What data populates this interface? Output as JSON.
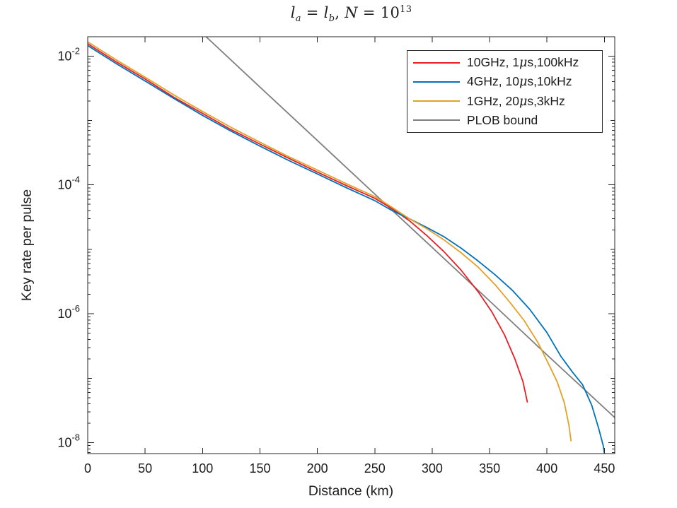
{
  "figure": {
    "background": "#ffffff",
    "axis_color": "#262626",
    "text_color": "#1c1c1c",
    "title_text": "l_a = l_b, N = 10^13",
    "title_parts": {
      "v1": "l",
      "s1": "a",
      "eq1": " = ",
      "v2": "l",
      "s2": "b",
      "comma": ", ",
      "n": "N",
      "eq2": " = 10",
      "sup": "13"
    }
  },
  "chart_data": {
    "type": "line",
    "title": "l_a = l_b, N = 10^13",
    "xlabel": "Distance (km)",
    "ylabel": "Key rate per pulse",
    "x_scale": "linear",
    "y_scale": "log",
    "xlim": [
      0,
      459
    ],
    "ylim": [
      6.8e-09,
      0.02
    ],
    "ylim_exponents": [
      -8.17,
      -1.7
    ],
    "x_ticks": [
      0,
      50,
      100,
      150,
      200,
      250,
      300,
      350,
      400,
      450
    ],
    "y_tick_exponents": [
      -2,
      -4,
      -6,
      -8
    ],
    "grid": false,
    "legend_position": "top-right",
    "series": [
      {
        "key": "10ghz",
        "name": "10GHz, 1μs,100kHz",
        "color": "#e81e25",
        "x": [
          0,
          25,
          50,
          75,
          100,
          125,
          150,
          175,
          200,
          225,
          250,
          265,
          280,
          295,
          310,
          325,
          340,
          352,
          363,
          372,
          379,
          383
        ],
        "y": [
          0.0155,
          0.0081,
          0.0044,
          0.0023,
          0.00129,
          0.00072,
          0.00043,
          0.00026,
          0.000158,
          9.8e-05,
          6.2e-05,
          4.3e-05,
          2.8e-05,
          1.66e-05,
          9.3e-06,
          4.8e-06,
          2.2e-06,
          1.07e-06,
          4.7e-07,
          2e-07,
          8.9e-08,
          4.2e-08
        ]
      },
      {
        "key": "4ghz",
        "name": "4GHz, 10μs,10kHz",
        "color": "#0072bd",
        "x": [
          0,
          25,
          50,
          75,
          100,
          125,
          150,
          175,
          200,
          225,
          250,
          265,
          280,
          295,
          310,
          325,
          340,
          355,
          370,
          385,
          400,
          412,
          422,
          431,
          439,
          445,
          449,
          450
        ],
        "y": [
          0.0145,
          0.0076,
          0.0041,
          0.0022,
          0.0012,
          0.00068,
          0.0004,
          0.00024,
          0.000148,
          9.1e-05,
          5.7e-05,
          4e-05,
          3e-05,
          2.2e-05,
          1.58e-05,
          1.05e-05,
          6.6e-06,
          4e-06,
          2.3e-06,
          1.17e-06,
          5.1e-07,
          2.2e-07,
          1.26e-07,
          7.9e-08,
          3.8e-08,
          1.66e-08,
          8.9e-09,
          6.8e-09
        ]
      },
      {
        "key": "1ghz",
        "name": "1GHz, 20μs,3kHz",
        "color": "#e3a127",
        "x": [
          0,
          25,
          50,
          75,
          100,
          125,
          150,
          175,
          200,
          225,
          250,
          265,
          280,
          295,
          310,
          325,
          340,
          355,
          368,
          380,
          392,
          402,
          409,
          415,
          419,
          421
        ],
        "y": [
          0.0166,
          0.0087,
          0.0047,
          0.0025,
          0.00138,
          0.00078,
          0.00046,
          0.000275,
          0.00017,
          0.000105,
          6.6e-05,
          4.5e-05,
          3e-05,
          2.1e-05,
          1.41e-05,
          8.9e-06,
          5.3e-06,
          2.8e-06,
          1.48e-06,
          7.9e-07,
          3.6e-07,
          1.58e-07,
          8.7e-08,
          4.2e-08,
          1.9e-08,
          1.05e-08
        ]
      },
      {
        "key": "plob",
        "name": "PLOB bound",
        "color": "#7f7f7f",
        "x": [
          103,
          150,
          200,
          250,
          300,
          350,
          400,
          459
        ],
        "y": [
          0.02,
          0.0033,
          0.00049,
          7.2e-05,
          1.07e-05,
          1.58e-06,
          2.3e-07,
          2.45e-08
        ]
      }
    ]
  }
}
